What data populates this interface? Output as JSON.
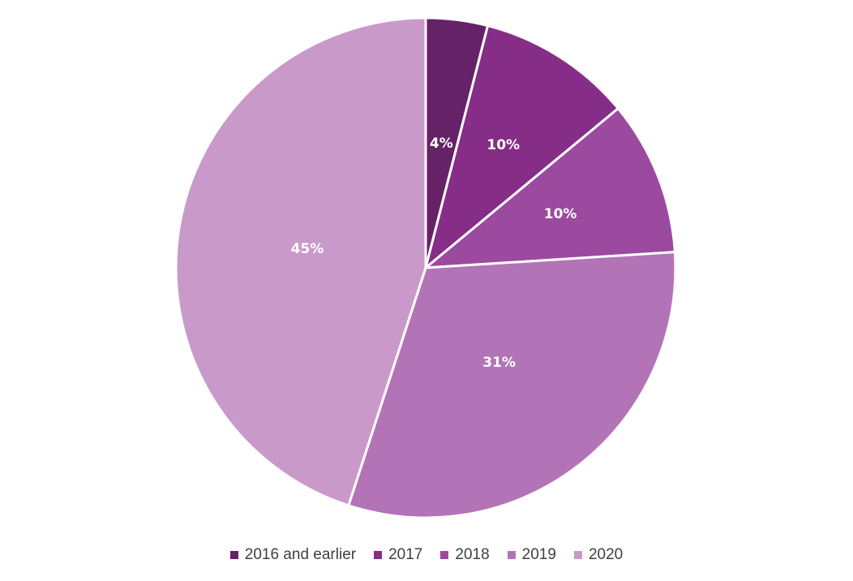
{
  "chart_data": {
    "type": "pie",
    "categories": [
      "2016 and earlier",
      "2017",
      "2018",
      "2019",
      "2020"
    ],
    "values": [
      4,
      10,
      10,
      31,
      45
    ],
    "value_labels": [
      "4%",
      "10%",
      "10%",
      "31%",
      "45%"
    ],
    "colors": [
      "#662266",
      "#852d87",
      "#9b4aa0",
      "#b374b7",
      "#c99ac9"
    ],
    "label_colors": [
      "#ffffff",
      "#ffffff",
      "#ffffff",
      "#ffffff",
      "#ffffff"
    ],
    "start_angle_deg": 0,
    "direction": "clockwise",
    "legend_position": "bottom"
  }
}
